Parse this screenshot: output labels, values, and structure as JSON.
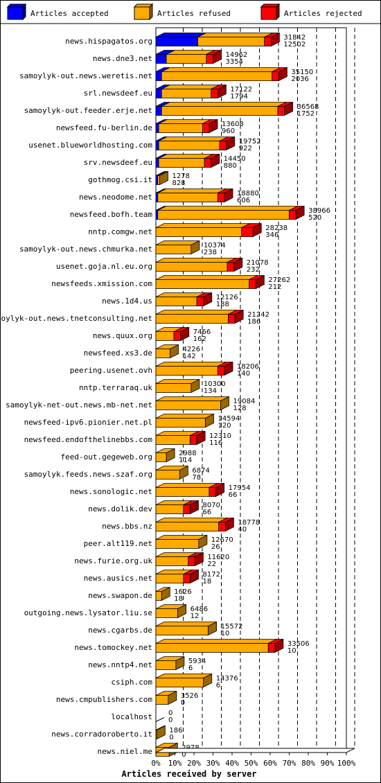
{
  "chart_data": {
    "type": "bar",
    "stacked": true,
    "orientation": "horizontal",
    "xlabel": "Articles received by server",
    "xlim": [
      0,
      100
    ],
    "xtick_labels": [
      "0%",
      "10%",
      "20%",
      "30%",
      "40%",
      "50%",
      "60%",
      "70%",
      "80%",
      "90%",
      "100%"
    ],
    "legend_position": "top",
    "series": [
      {
        "name": "Articles accepted",
        "color": "#0000ff"
      },
      {
        "name": "Articles refused",
        "color": "#ffaa00"
      },
      {
        "name": "Articles rejected",
        "color": "#ff0000"
      }
    ],
    "rows": [
      {
        "server": "news.hispagatos.org",
        "accepted_pct": 22,
        "refused_pct": 35,
        "rejected_pct": 3.5,
        "total": 31842,
        "rejected": 12502
      },
      {
        "server": "news.dne3.net",
        "accepted_pct": 5.5,
        "refused_pct": 21,
        "rejected_pct": 3.5,
        "total": 14962,
        "rejected": 3354
      },
      {
        "server": "samoylyk-out.news.weretis.net",
        "accepted_pct": 3,
        "refused_pct": 58,
        "rejected_pct": 3.5,
        "total": 35150,
        "rejected": 2036
      },
      {
        "server": "srl.newsdeef.eu",
        "accepted_pct": 3,
        "refused_pct": 26,
        "rejected_pct": 3.5,
        "total": 17122,
        "rejected": 1794
      },
      {
        "server": "samoylyk-out.feeder.erje.net",
        "accepted_pct": 3,
        "refused_pct": 61,
        "rejected_pct": 3.5,
        "total": 36568,
        "rejected": 1752
      },
      {
        "server": "newsfeed.fu-berlin.de",
        "accepted_pct": 1.5,
        "refused_pct": 23,
        "rejected_pct": 3.5,
        "total": 13608,
        "rejected": 960
      },
      {
        "server": "usenet.blueworldhosting.com",
        "accepted_pct": 1.5,
        "refused_pct": 32,
        "rejected_pct": 3.5,
        "total": 19752,
        "rejected": 922
      },
      {
        "server": "srv.newsdeef.eu",
        "accepted_pct": 1.5,
        "refused_pct": 24,
        "rejected_pct": 3.5,
        "total": 14450,
        "rejected": 880
      },
      {
        "server": "gothmog.csi.it",
        "accepted_pct": 1,
        "refused_pct": 1,
        "rejected_pct": 0,
        "total": 1278,
        "rejected": 828
      },
      {
        "server": "news.neodome.net",
        "accepted_pct": 1,
        "refused_pct": 31.5,
        "rejected_pct": 3.5,
        "total": 18880,
        "rejected": 606
      },
      {
        "server": "newsfeed.bofh.team",
        "accepted_pct": 1,
        "refused_pct": 69,
        "rejected_pct": 3.5,
        "total": 38966,
        "rejected": 520
      },
      {
        "server": "nntp.comgw.net",
        "accepted_pct": 0,
        "refused_pct": 45,
        "rejected_pct": 6,
        "total": 28238,
        "rejected": 346
      },
      {
        "server": "samoylyk-out.news.chmurka.net",
        "accepted_pct": 0,
        "refused_pct": 18.5,
        "rejected_pct": 0,
        "total": 10374,
        "rejected": 238
      },
      {
        "server": "usenet.goja.nl.eu.org",
        "accepted_pct": 0,
        "refused_pct": 37.5,
        "rejected_pct": 3.5,
        "total": 21078,
        "rejected": 232
      },
      {
        "server": "newsfeeds.xmission.com",
        "accepted_pct": 0,
        "refused_pct": 49,
        "rejected_pct": 3.5,
        "total": 27262,
        "rejected": 212
      },
      {
        "server": "news.1d4.us",
        "accepted_pct": 0,
        "refused_pct": 21.5,
        "rejected_pct": 3.5,
        "total": 12126,
        "rejected": 188
      },
      {
        "server": "samoylyk-out.news.tnetconsulting.net",
        "accepted_pct": 0,
        "refused_pct": 38,
        "rejected_pct": 3.5,
        "total": 21242,
        "rejected": 186
      },
      {
        "server": "news.quux.org",
        "accepted_pct": 0,
        "refused_pct": 9.5,
        "rejected_pct": 3.5,
        "total": 7466,
        "rejected": 162
      },
      {
        "server": "newsfeed.xs3.de",
        "accepted_pct": 0,
        "refused_pct": 7.5,
        "rejected_pct": 0,
        "total": 4226,
        "rejected": 142
      },
      {
        "server": "peering.usenet.ovh",
        "accepted_pct": 0,
        "refused_pct": 32.5,
        "rejected_pct": 3.5,
        "total": 18206,
        "rejected": 140
      },
      {
        "server": "nntp.terraraq.uk",
        "accepted_pct": 0,
        "refused_pct": 18.5,
        "rejected_pct": 0,
        "total": 10300,
        "rejected": 134
      },
      {
        "server": "samoylyk-net-out.news.mb-net.net",
        "accepted_pct": 0,
        "refused_pct": 34,
        "rejected_pct": 0,
        "total": 19084,
        "rejected": 128
      },
      {
        "server": "newsfeed-ipv6.pionier.net.pl",
        "accepted_pct": 0,
        "refused_pct": 26,
        "rejected_pct": 0,
        "total": 14594,
        "rejected": 120
      },
      {
        "server": "newsfeed.endofthelinebbs.com",
        "accepted_pct": 0,
        "refused_pct": 18,
        "rejected_pct": 3.5,
        "total": 12310,
        "rejected": 116
      },
      {
        "server": "feed-out.gegeweb.org",
        "accepted_pct": 0,
        "refused_pct": 5.5,
        "rejected_pct": 0,
        "total": 2988,
        "rejected": 114
      },
      {
        "server": "samoylyk.feeds.news.szaf.org",
        "accepted_pct": 0,
        "refused_pct": 12.5,
        "rejected_pct": 0,
        "total": 6874,
        "rejected": 78
      },
      {
        "server": "news.sonologic.net",
        "accepted_pct": 0,
        "refused_pct": 28,
        "rejected_pct": 3.5,
        "total": 17954,
        "rejected": 66
      },
      {
        "server": "news.dolik.dev",
        "accepted_pct": 0,
        "refused_pct": 14.5,
        "rejected_pct": 3.5,
        "total": 8070,
        "rejected": 66
      },
      {
        "server": "news.bbs.nz",
        "accepted_pct": 0,
        "refused_pct": 33,
        "rejected_pct": 3.5,
        "total": 18778,
        "rejected": 40
      },
      {
        "server": "peer.alt119.net",
        "accepted_pct": 0,
        "refused_pct": 22.5,
        "rejected_pct": 0,
        "total": 12670,
        "rejected": 26
      },
      {
        "server": "news.furie.org.uk",
        "accepted_pct": 0,
        "refused_pct": 17,
        "rejected_pct": 3.5,
        "total": 11620,
        "rejected": 22
      },
      {
        "server": "news.ausics.net",
        "accepted_pct": 0,
        "refused_pct": 14.5,
        "rejected_pct": 3.5,
        "total": 8172,
        "rejected": 18
      },
      {
        "server": "news.swapon.de",
        "accepted_pct": 0,
        "refused_pct": 3,
        "rejected_pct": 0,
        "total": 1626,
        "rejected": 18
      },
      {
        "server": "outgoing.news.lysator.liu.se",
        "accepted_pct": 0,
        "refused_pct": 11.5,
        "rejected_pct": 0,
        "total": 6486,
        "rejected": 12
      },
      {
        "server": "news.cgarbs.de",
        "accepted_pct": 0,
        "refused_pct": 27.5,
        "rejected_pct": 0,
        "total": 15572,
        "rejected": 10
      },
      {
        "server": "news.tomockey.net",
        "accepted_pct": 0,
        "refused_pct": 59,
        "rejected_pct": 3.5,
        "total": 33506,
        "rejected": 10
      },
      {
        "server": "news.nntp4.net",
        "accepted_pct": 0,
        "refused_pct": 10.5,
        "rejected_pct": 0,
        "total": 5934,
        "rejected": 6
      },
      {
        "server": "csiph.com",
        "accepted_pct": 0,
        "refused_pct": 25,
        "rejected_pct": 0,
        "total": 14376,
        "rejected": 6
      },
      {
        "server": "news.cmpublishers.com",
        "accepted_pct": 0,
        "refused_pct": 6.5,
        "rejected_pct": 0,
        "total": 3526,
        "rejected": 0
      },
      {
        "server": "localhost",
        "accepted_pct": 0,
        "refused_pct": 0,
        "rejected_pct": 0,
        "total": 0,
        "rejected": 0
      },
      {
        "server": "news.corradoroberto.it",
        "accepted_pct": 0,
        "refused_pct": 0.5,
        "rejected_pct": 0,
        "total": 186,
        "rejected": 0
      },
      {
        "server": "news.niel.me",
        "accepted_pct": 0,
        "refused_pct": 7,
        "rejected_pct": 0,
        "total": 2978,
        "rejected": 0
      }
    ]
  }
}
